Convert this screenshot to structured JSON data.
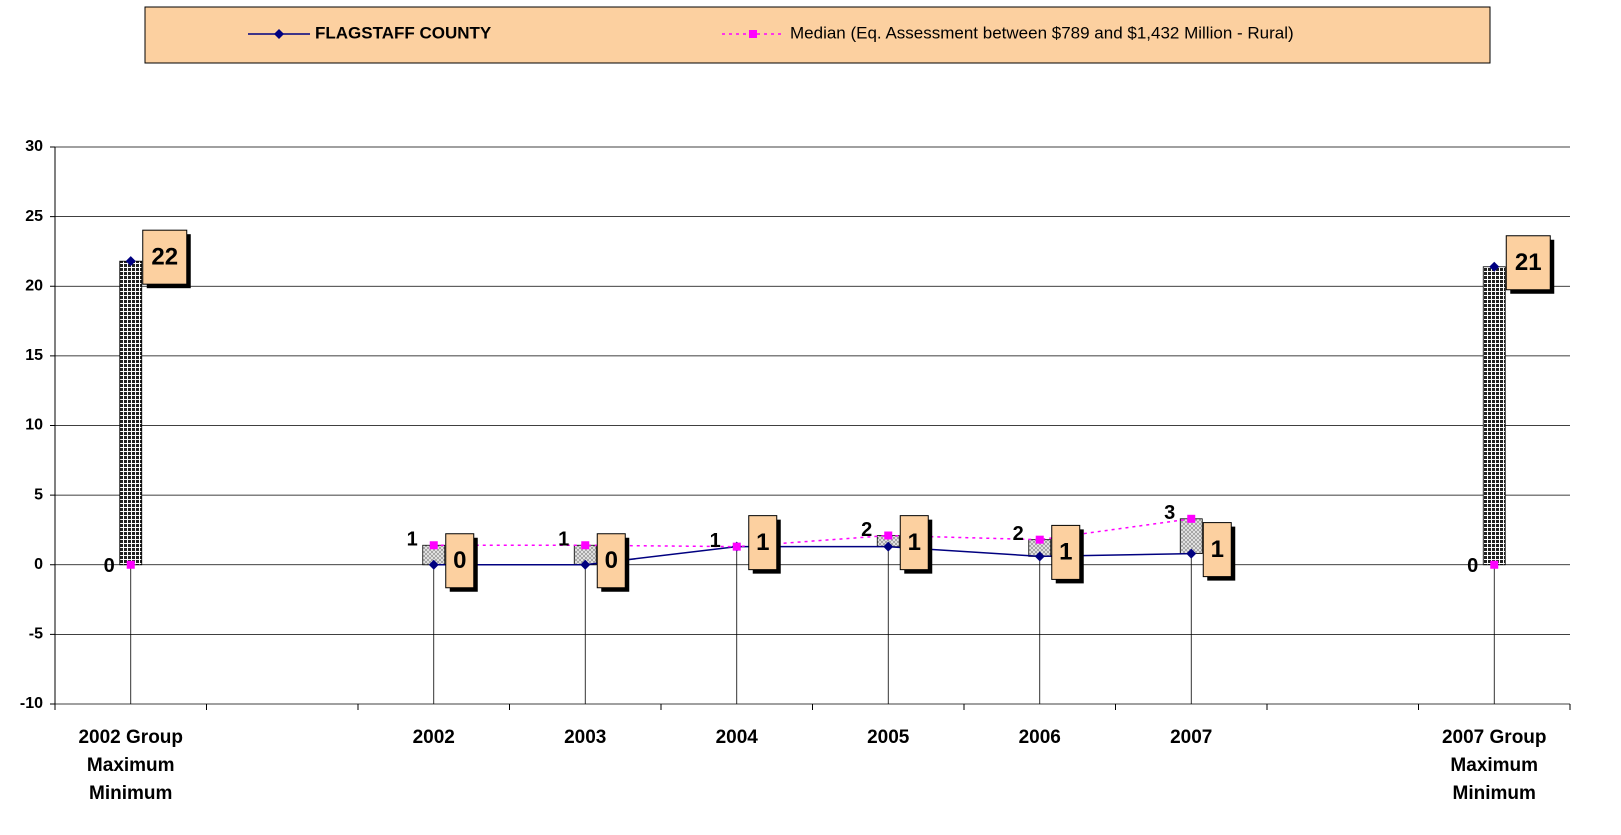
{
  "chart_data": {
    "type": "line",
    "categories": [
      "2002 Group\nMaximum\nMinimum",
      null,
      "2002",
      "2003",
      "2004",
      "2005",
      "2006",
      "2007",
      null,
      "2007 Group\nMaximum\nMinimum"
    ],
    "series": [
      {
        "name": "FLAGSTAFF COUNTY",
        "color": "#000080",
        "values": [
          21.8,
          null,
          0,
          0,
          1.3,
          1.3,
          0.6,
          0.8,
          null,
          21.4
        ],
        "value_labels": [
          "22",
          null,
          "0",
          "0",
          "1",
          "1",
          "1",
          "1",
          null,
          "21"
        ]
      },
      {
        "name": "Median (Eq. Assessment between $789 and $1,432 Million - Rural)",
        "color": "#ff00ff",
        "values": [
          0,
          null,
          1.4,
          1.4,
          1.3,
          2.1,
          1.8,
          3.3,
          null,
          0
        ],
        "value_labels": [
          "0",
          null,
          "1",
          "1",
          "1",
          "2",
          "2",
          "3",
          null,
          "0"
        ]
      }
    ],
    "ylim": [
      -10,
      30
    ],
    "yticks": [
      -10,
      -5,
      0,
      5,
      10,
      15,
      20,
      25,
      30
    ],
    "grid": true
  }
}
